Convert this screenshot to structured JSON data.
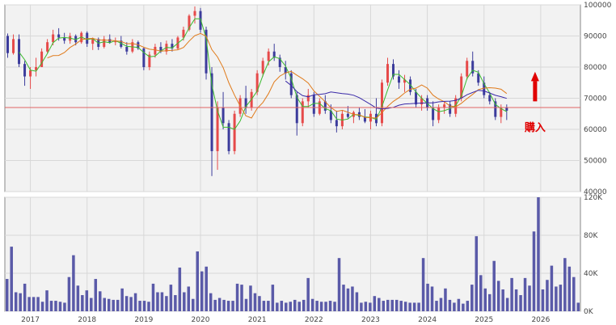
{
  "chart_data": [
    {
      "type": "candlestick",
      "y_ticks": [
        "100000",
        "90000",
        "80000",
        "70000",
        "60000",
        "50000",
        "40000"
      ],
      "ylim": [
        40000,
        100000
      ],
      "reference_line": 67000,
      "annotation": {
        "text": "購入",
        "x": 2025.9,
        "y": 67000
      },
      "colors": {
        "up": "#e64a4a",
        "down": "#3c3c9c",
        "ma_short": "#3aba2e",
        "ma_mid": "#e07a1a",
        "ma_long": "#3a2aa8",
        "reference": "#e06464",
        "annotation": "#e00000"
      },
      "candles_monthly": [
        [
          2016.6,
          90000,
          90800,
          83000,
          84500
        ],
        [
          2016.7,
          84500,
          90500,
          84000,
          89000
        ],
        [
          2016.8,
          89000,
          90500,
          80000,
          81000
        ],
        [
          2016.9,
          81000,
          82000,
          74000,
          77000
        ],
        [
          2017.0,
          77000,
          80000,
          73000,
          79000
        ],
        [
          2017.1,
          79000,
          83000,
          77000,
          80000
        ],
        [
          2017.2,
          80000,
          86000,
          80000,
          85000
        ],
        [
          2017.3,
          85000,
          89000,
          84500,
          88000
        ],
        [
          2017.4,
          88000,
          92000,
          87000,
          90500
        ],
        [
          2017.5,
          90500,
          92500,
          88500,
          89500
        ],
        [
          2017.6,
          89500,
          91000,
          87500,
          88500
        ],
        [
          2017.7,
          88500,
          91000,
          87500,
          90000
        ],
        [
          2017.8,
          90000,
          90500,
          87000,
          88000
        ],
        [
          2017.9,
          88000,
          91500,
          87500,
          91000
        ],
        [
          2018.0,
          91000,
          91500,
          86500,
          87500
        ],
        [
          2018.1,
          87500,
          89500,
          85500,
          89000
        ],
        [
          2018.2,
          89000,
          89500,
          85500,
          86500
        ],
        [
          2018.3,
          86500,
          90000,
          86000,
          89000
        ],
        [
          2018.4,
          89000,
          90500,
          87500,
          88000
        ],
        [
          2018.5,
          88000,
          89500,
          87000,
          88500
        ],
        [
          2018.6,
          88500,
          90000,
          86000,
          86500
        ],
        [
          2018.7,
          86500,
          88000,
          84000,
          85000
        ],
        [
          2018.8,
          85000,
          89000,
          84500,
          88000
        ],
        [
          2018.9,
          88000,
          88500,
          85500,
          86000
        ],
        [
          2019.0,
          86000,
          86500,
          79000,
          80000
        ],
        [
          2019.1,
          80000,
          85000,
          79000,
          84000
        ],
        [
          2019.2,
          84000,
          87500,
          83000,
          86500
        ],
        [
          2019.3,
          86500,
          88000,
          84500,
          85000
        ],
        [
          2019.4,
          85000,
          88500,
          84000,
          87500
        ],
        [
          2019.5,
          87500,
          89000,
          85000,
          86000
        ],
        [
          2019.6,
          86000,
          90000,
          85500,
          89500
        ],
        [
          2019.7,
          89500,
          93000,
          88500,
          92000
        ],
        [
          2019.8,
          92000,
          97000,
          91500,
          96500
        ],
        [
          2019.9,
          96500,
          99500,
          94000,
          98000
        ],
        [
          2020.0,
          98000,
          99000,
          91000,
          92000
        ],
        [
          2020.1,
          92000,
          93000,
          76000,
          78000
        ],
        [
          2020.2,
          78000,
          80000,
          45000,
          53000
        ],
        [
          2020.3,
          53000,
          69000,
          47000,
          67000
        ],
        [
          2020.4,
          67000,
          72000,
          60000,
          62000
        ],
        [
          2020.5,
          62000,
          63000,
          52000,
          53000
        ],
        [
          2020.6,
          53000,
          66000,
          52000,
          65000
        ],
        [
          2020.7,
          65000,
          71000,
          64000,
          70000
        ],
        [
          2020.8,
          70000,
          74000,
          65000,
          67000
        ],
        [
          2020.9,
          67000,
          73000,
          66000,
          72000
        ],
        [
          2021.0,
          72000,
          79000,
          71000,
          78000
        ],
        [
          2021.1,
          78000,
          83000,
          77000,
          82000
        ],
        [
          2021.2,
          82000,
          86000,
          80500,
          85000
        ],
        [
          2021.3,
          85000,
          87500,
          82000,
          83000
        ],
        [
          2021.4,
          83000,
          84000,
          78500,
          80000
        ],
        [
          2021.5,
          80000,
          82000,
          76000,
          78000
        ],
        [
          2021.6,
          78000,
          79000,
          70000,
          71000
        ],
        [
          2021.7,
          71000,
          72000,
          58000,
          62000
        ],
        [
          2021.8,
          62000,
          70000,
          61000,
          69000
        ],
        [
          2021.9,
          69000,
          73000,
          67000,
          71000
        ],
        [
          2022.0,
          71000,
          72000,
          64000,
          65000
        ],
        [
          2022.1,
          65000,
          70000,
          64500,
          69000
        ],
        [
          2022.2,
          69000,
          71000,
          65000,
          66000
        ],
        [
          2022.3,
          66000,
          68000,
          62000,
          63000
        ],
        [
          2022.4,
          63000,
          66000,
          59000,
          61000
        ],
        [
          2022.5,
          61000,
          66000,
          60000,
          65000
        ],
        [
          2022.6,
          65000,
          67500,
          63500,
          64000
        ],
        [
          2022.7,
          64000,
          66000,
          62000,
          65500
        ],
        [
          2022.8,
          65500,
          67000,
          63000,
          64000
        ],
        [
          2022.9,
          64000,
          66500,
          62000,
          62500
        ],
        [
          2023.0,
          62500,
          66000,
          60000,
          65000
        ],
        [
          2023.1,
          65000,
          70000,
          61000,
          62000
        ],
        [
          2023.2,
          62000,
          76000,
          61000,
          75000
        ],
        [
          2023.3,
          75000,
          83000,
          74000,
          81000
        ],
        [
          2023.4,
          81000,
          82500,
          76000,
          77000
        ],
        [
          2023.5,
          77000,
          79000,
          73000,
          75000
        ],
        [
          2023.6,
          75000,
          77500,
          72000,
          76000
        ],
        [
          2023.7,
          76000,
          77000,
          71000,
          72000
        ],
        [
          2023.8,
          72000,
          73000,
          67000,
          68000
        ],
        [
          2023.9,
          68000,
          71000,
          66000,
          70000
        ],
        [
          2024.0,
          70000,
          71000,
          66000,
          67000
        ],
        [
          2024.1,
          67000,
          69000,
          61000,
          63000
        ],
        [
          2024.2,
          63000,
          68000,
          62000,
          67000
        ],
        [
          2024.3,
          67000,
          69000,
          65000,
          68000
        ],
        [
          2024.4,
          68000,
          69000,
          64000,
          65000
        ],
        [
          2024.5,
          65000,
          71000,
          64000,
          70000
        ],
        [
          2024.6,
          70000,
          78000,
          69000,
          77000
        ],
        [
          2024.7,
          77000,
          83000,
          76000,
          82000
        ],
        [
          2024.8,
          82000,
          85000,
          77000,
          78000
        ],
        [
          2024.9,
          78000,
          79000,
          74000,
          75000
        ],
        [
          2025.0,
          75000,
          77000,
          70000,
          71000
        ],
        [
          2025.1,
          71000,
          72000,
          68000,
          69000
        ],
        [
          2025.2,
          69000,
          70000,
          63000,
          64000
        ],
        [
          2025.3,
          64000,
          68000,
          62000,
          67000
        ],
        [
          2025.4,
          67000,
          68000,
          63000,
          66000
        ]
      ],
      "panel": "price"
    },
    {
      "type": "bar",
      "panel": "volume",
      "y_ticks": [
        "120K",
        "80K",
        "40K",
        "0K"
      ],
      "ylim": [
        0,
        120000
      ],
      "x_ticks": [
        "2017",
        "2018",
        "2019",
        "2020",
        "2021",
        "2022",
        "2023",
        "2024",
        "2025",
        "2026"
      ],
      "color": "#5a5aa8",
      "values": [
        34000,
        68000,
        20000,
        19000,
        29000,
        15000,
        15000,
        15000,
        10000,
        22000,
        11000,
        11000,
        10000,
        9000,
        36000,
        59000,
        27000,
        17000,
        22000,
        14000,
        34000,
        21000,
        14000,
        13000,
        12000,
        12000,
        24000,
        16000,
        15000,
        19000,
        11000,
        11000,
        10000,
        29000,
        20000,
        20000,
        16000,
        28000,
        17000,
        46000,
        20000,
        26000,
        13000,
        63000,
        42000,
        47000,
        19000,
        12000,
        14000,
        12000,
        11000,
        11000,
        29000,
        28000,
        13000,
        27000,
        19000,
        16000,
        11000,
        11000,
        28000,
        9000,
        11000,
        9000,
        10000,
        12000,
        10000,
        12000,
        35000,
        13000,
        11000,
        10000,
        10000,
        11000,
        10000,
        56000,
        28000,
        24000,
        26000,
        20000,
        9000,
        10000,
        9000,
        16000,
        14000,
        11000,
        12000,
        12000,
        12000,
        11000,
        10000,
        9000,
        9000,
        9000,
        56000,
        29000,
        26000,
        11000,
        14000,
        24000,
        12000,
        9000,
        13000,
        8000,
        11000,
        28000,
        79000,
        38000,
        24000,
        18000,
        53000,
        32000,
        23000,
        14000,
        35000,
        23000,
        17000,
        35000,
        27000,
        84000,
        120000,
        23000,
        33000,
        48000,
        26000,
        28000,
        56000,
        47000,
        36000,
        9000
      ]
    }
  ]
}
